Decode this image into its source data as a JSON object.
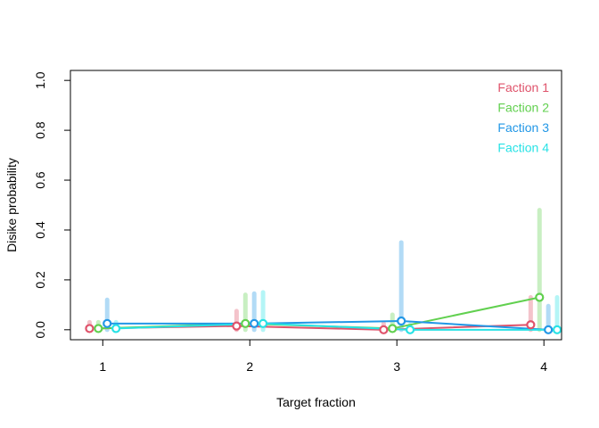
{
  "chart_data": {
    "type": "line",
    "xlabel": "Target fraction",
    "ylabel": "Disike probability",
    "x": [
      1,
      2,
      3,
      4
    ],
    "x_tick_labels": [
      "1",
      "2",
      "3",
      "4"
    ],
    "xlim": [
      0.78,
      4.12
    ],
    "ylim": [
      -0.04,
      1.04
    ],
    "y_ticks": [
      0.0,
      0.2,
      0.4,
      0.6,
      0.8,
      1.0
    ],
    "y_tick_labels": [
      "0.0",
      "0.2",
      "0.4",
      "0.6",
      "0.8",
      "1.0"
    ],
    "legend_position": "top-right",
    "error_bars": "vertical translucent intervals",
    "series": [
      {
        "name": "Faction 1",
        "color": "#DF536B",
        "values": [
          0.005,
          0.015,
          0.0,
          0.02
        ],
        "lower": [
          0.0,
          0.0,
          0.0,
          0.0
        ],
        "upper": [
          0.03,
          0.075,
          0.025,
          0.13
        ]
      },
      {
        "name": "Faction 2",
        "color": "#61D04F",
        "values": [
          0.005,
          0.025,
          0.005,
          0.13
        ],
        "lower": [
          0.0,
          0.0,
          0.0,
          0.0
        ],
        "upper": [
          0.03,
          0.14,
          0.06,
          0.48
        ]
      },
      {
        "name": "Faction 3",
        "color": "#2297E6",
        "values": [
          0.025,
          0.025,
          0.035,
          0.0
        ],
        "lower": [
          0.0,
          0.0,
          0.0,
          0.0
        ],
        "upper": [
          0.12,
          0.145,
          0.35,
          0.095
        ]
      },
      {
        "name": "Faction 4",
        "color": "#28E2E5",
        "values": [
          0.005,
          0.025,
          0.0,
          0.0
        ],
        "lower": [
          0.0,
          0.0,
          0.0,
          0.0
        ],
        "upper": [
          0.03,
          0.15,
          0.02,
          0.13
        ]
      }
    ]
  }
}
